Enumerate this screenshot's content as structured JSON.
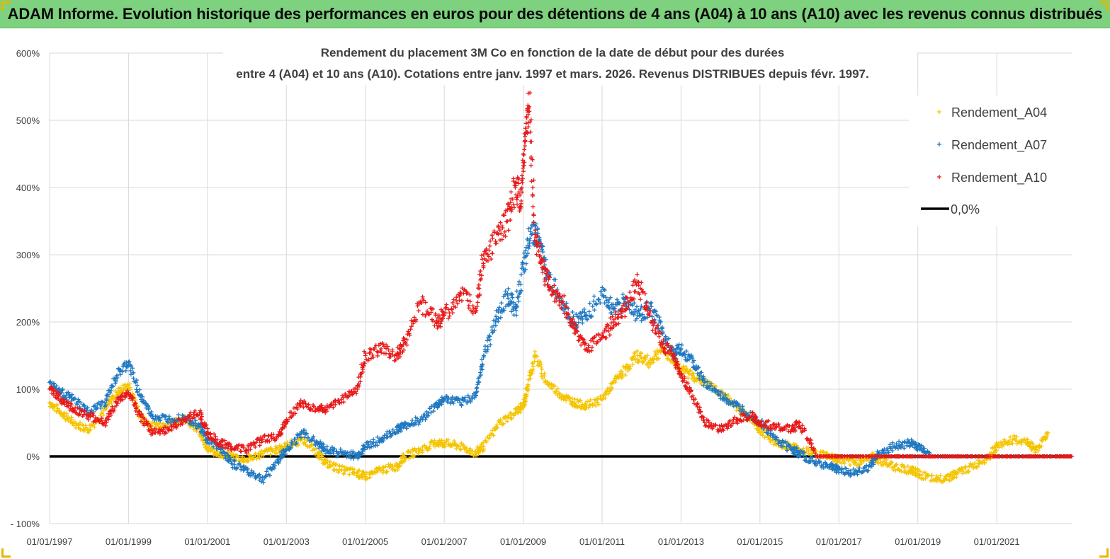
{
  "banner": {
    "title": "ADAM Informe. Evolution historique des performances en euros pour des détentions de 4 ans (A04) à 10 ans (A10) avec les revenus connus distribués"
  },
  "colors": {
    "banner_bg": "#7ed17e",
    "a04": "#f5c400",
    "a07": "#1f78c1",
    "a10": "#e81919",
    "zero_line": "#000000"
  },
  "chart_data": {
    "type": "scatter",
    "title_line1": "Rendement du placement 3M Co en fonction de la date de début pour des durées",
    "title_line2": "entre 4 (A04) et 10 ans (A10). Cotations entre janv. 1997 et mars. 2026. Revenus DISTRIBUES depuis févr. 1997.",
    "xlabel": "",
    "ylabel": "",
    "xlim": [
      1997.0,
      2022.9
    ],
    "ylim": [
      -100,
      600
    ],
    "y_ticks": [
      -100,
      0,
      100,
      200,
      300,
      400,
      500,
      600
    ],
    "y_tick_labels": [
      "- 100%",
      "0%",
      "100%",
      "200%",
      "300%",
      "400%",
      "500%",
      "600%"
    ],
    "x_ticks": [
      1997,
      1999,
      2001,
      2003,
      2005,
      2007,
      2009,
      2011,
      2013,
      2015,
      2017,
      2019,
      2021
    ],
    "x_tick_labels": [
      "01/01/1997",
      "01/01/1999",
      "01/01/2001",
      "01/01/2003",
      "01/01/2005",
      "01/01/2007",
      "01/01/2009",
      "01/01/2011",
      "01/01/2013",
      "01/01/2015",
      "01/01/2017",
      "01/01/2019",
      "01/01/2021"
    ],
    "grid": true,
    "legend_position": "top-right",
    "series": [
      {
        "name": "Rendement_A04",
        "x": [
          1997.0,
          1997.3,
          1997.6,
          1998.0,
          1998.4,
          1998.7,
          1999.0,
          1999.3,
          1999.6,
          2000.0,
          2000.4,
          2000.8,
          2001.0,
          2001.3,
          2001.6,
          2002.0,
          2002.4,
          2002.8,
          2003.0,
          2003.4,
          2003.8,
          2004.0,
          2004.4,
          2004.8,
          2005.0,
          2005.4,
          2005.8,
          2006.0,
          2006.4,
          2006.8,
          2007.0,
          2007.4,
          2007.8,
          2008.0,
          2008.4,
          2008.8,
          2009.0,
          2009.1,
          2009.3,
          2009.6,
          2010.0,
          2010.3,
          2010.6,
          2011.0,
          2011.3,
          2011.6,
          2011.9,
          2012.2,
          2012.5,
          2012.8,
          2013.0,
          2013.3,
          2013.6,
          2014.0,
          2014.4,
          2014.8,
          2015.0,
          2015.4,
          2015.8,
          2016.0,
          2016.4,
          2016.8,
          2017.0,
          2017.4,
          2017.8,
          2018.0,
          2018.4,
          2018.8,
          2019.0,
          2019.4,
          2019.8,
          2020.0,
          2020.4,
          2020.8,
          2021.0,
          2021.4,
          2021.8,
          2022.0,
          2022.3
        ],
        "y": [
          80,
          65,
          50,
          40,
          70,
          95,
          105,
          60,
          45,
          50,
          55,
          40,
          10,
          5,
          0,
          -5,
          5,
          10,
          15,
          25,
          5,
          -10,
          -20,
          -25,
          -30,
          -20,
          -15,
          0,
          10,
          20,
          20,
          15,
          5,
          15,
          50,
          65,
          75,
          100,
          150,
          110,
          90,
          80,
          75,
          85,
          110,
          130,
          150,
          140,
          160,
          145,
          130,
          120,
          110,
          95,
          75,
          55,
          40,
          20,
          15,
          10,
          5,
          0,
          -5,
          -10,
          0,
          -5,
          -15,
          -20,
          -25,
          -35,
          -30,
          -25,
          -15,
          0,
          15,
          25,
          20,
          10,
          35
        ]
      },
      {
        "name": "Rendement_A07",
        "x": [
          1997.0,
          1997.3,
          1997.6,
          1998.0,
          1998.4,
          1998.7,
          1999.0,
          1999.3,
          1999.6,
          2000.0,
          2000.4,
          2000.8,
          2001.0,
          2001.3,
          2001.6,
          2002.0,
          2002.4,
          2002.8,
          2003.0,
          2003.4,
          2003.8,
          2004.0,
          2004.4,
          2004.8,
          2005.0,
          2005.4,
          2005.8,
          2006.0,
          2006.4,
          2006.8,
          2007.0,
          2007.4,
          2007.8,
          2008.0,
          2008.3,
          2008.6,
          2008.8,
          2009.0,
          2009.2,
          2009.4,
          2009.6,
          2010.0,
          2010.3,
          2010.6,
          2011.0,
          2011.3,
          2011.6,
          2011.9,
          2012.2,
          2012.5,
          2012.8,
          2013.0,
          2013.3,
          2013.6,
          2014.0,
          2014.4,
          2014.8,
          2015.0,
          2015.4,
          2015.8,
          2016.0,
          2016.4,
          2016.8,
          2017.0,
          2017.4,
          2017.8,
          2018.0,
          2018.4,
          2018.8,
          2019.0,
          2019.3
        ],
        "y": [
          110,
          95,
          85,
          65,
          80,
          120,
          140,
          90,
          60,
          55,
          60,
          45,
          25,
          15,
          -10,
          -20,
          -35,
          -5,
          10,
          35,
          20,
          10,
          5,
          0,
          15,
          25,
          40,
          45,
          55,
          75,
          85,
          80,
          90,
          150,
          200,
          240,
          220,
          280,
          340,
          320,
          270,
          230,
          200,
          210,
          240,
          220,
          230,
          210,
          220,
          190,
          150,
          160,
          140,
          110,
          90,
          75,
          60,
          50,
          25,
          10,
          5,
          -10,
          -15,
          -20,
          -25,
          -15,
          5,
          15,
          20,
          15,
          5
        ]
      },
      {
        "name": "Rendement_A10",
        "x": [
          1997.0,
          1997.3,
          1997.6,
          1998.0,
          1998.4,
          1998.7,
          1999.0,
          1999.3,
          1999.6,
          2000.0,
          2000.4,
          2000.8,
          2001.0,
          2001.3,
          2001.6,
          2002.0,
          2002.4,
          2002.8,
          2003.0,
          2003.4,
          2003.8,
          2004.0,
          2004.4,
          2004.8,
          2005.0,
          2005.4,
          2005.8,
          2006.0,
          2006.4,
          2006.8,
          2007.0,
          2007.4,
          2007.8,
          2008.0,
          2008.3,
          2008.6,
          2008.8,
          2008.95,
          2009.05,
          2009.15,
          2009.3,
          2009.5,
          2009.7,
          2010.0,
          2010.3,
          2010.6,
          2011.0,
          2011.3,
          2011.6,
          2011.9,
          2012.2,
          2012.5,
          2012.8,
          2013.0,
          2013.3,
          2013.6,
          2014.0,
          2014.4,
          2014.8,
          2015.0,
          2015.4,
          2015.8,
          2016.0,
          2016.4,
          2016.8,
          2017.0,
          2017.5,
          2018.0,
          2018.5,
          2019.0,
          2019.5,
          2020.0,
          2020.5,
          2021.0,
          2021.5,
          2022.0,
          2022.5,
          2022.9
        ],
        "y": [
          100,
          85,
          70,
          60,
          50,
          80,
          95,
          60,
          35,
          40,
          55,
          65,
          35,
          20,
          15,
          10,
          25,
          30,
          55,
          80,
          70,
          70,
          85,
          100,
          150,
          160,
          150,
          170,
          230,
          200,
          210,
          240,
          220,
          300,
          320,
          350,
          400,
          380,
          470,
          520,
          330,
          280,
          250,
          230,
          190,
          160,
          180,
          200,
          220,
          260,
          210,
          170,
          150,
          120,
          90,
          50,
          40,
          55,
          60,
          50,
          45,
          40,
          50,
          5,
          0,
          0,
          0,
          0,
          0,
          0,
          0,
          0,
          0,
          0,
          0,
          0,
          0,
          0
        ]
      },
      {
        "name": "0,0%",
        "x": [
          1997.0,
          2022.9
        ],
        "y": [
          0,
          0
        ]
      }
    ]
  }
}
